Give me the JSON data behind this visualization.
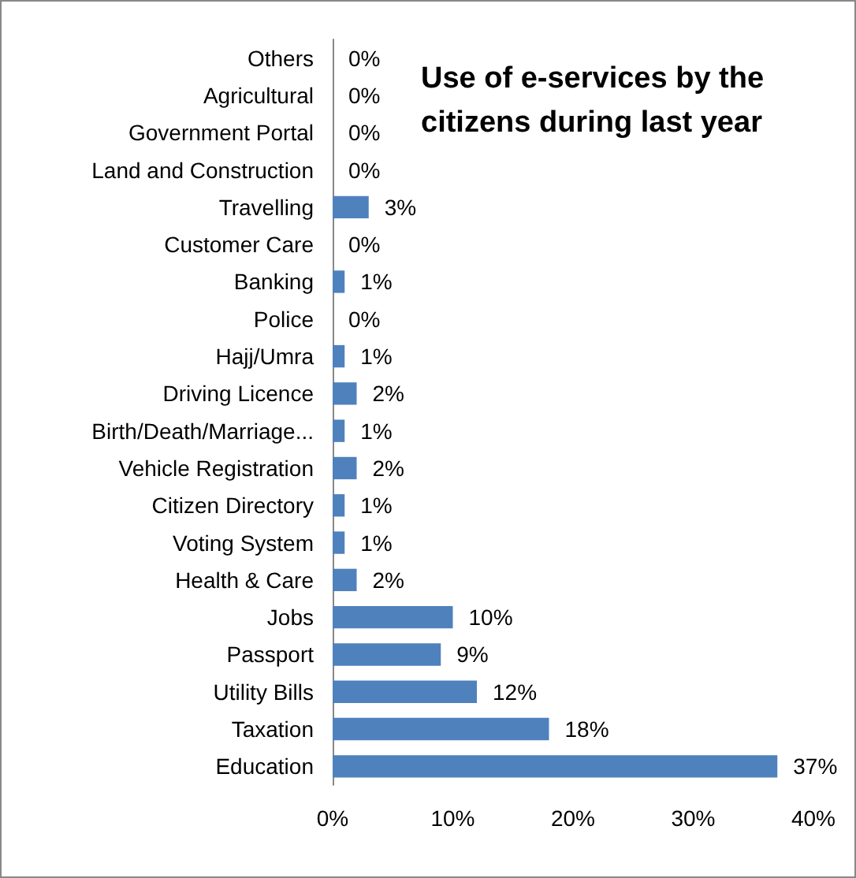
{
  "chart_data": {
    "type": "bar",
    "orientation": "horizontal",
    "title": "Use of e-services by the citizens during last year",
    "categories": [
      "Others",
      "Agricultural",
      "Government Portal",
      "Land and Construction",
      "Travelling",
      "Customer Care",
      "Banking",
      "Police",
      "Hajj/Umra",
      "Driving Licence",
      "Birth/Death/Marriage...",
      "Vehicle Registration",
      "Citizen Directory",
      "Voting System",
      "Health & Care",
      "Jobs",
      "Passport",
      "Utility Bills",
      "Taxation",
      "Education"
    ],
    "values": [
      0,
      0,
      0,
      0,
      3,
      0,
      1,
      0,
      1,
      2,
      1,
      2,
      1,
      1,
      2,
      10,
      9,
      12,
      18,
      37
    ],
    "value_labels": [
      "0%",
      "0%",
      "0%",
      "0%",
      "3%",
      "0%",
      "1%",
      "0%",
      "1%",
      "2%",
      "1%",
      "2%",
      "1%",
      "1%",
      "2%",
      "10%",
      "9%",
      "12%",
      "18%",
      "37%"
    ],
    "color": "#4f81bd",
    "xlim": [
      0,
      40
    ],
    "xticks": [
      {
        "value": 0,
        "label": "0%"
      },
      {
        "value": 10,
        "label": "10%"
      },
      {
        "value": 20,
        "label": "20%"
      },
      {
        "value": 30,
        "label": "30%"
      },
      {
        "value": 40,
        "label": "40%"
      }
    ],
    "grid": false
  }
}
